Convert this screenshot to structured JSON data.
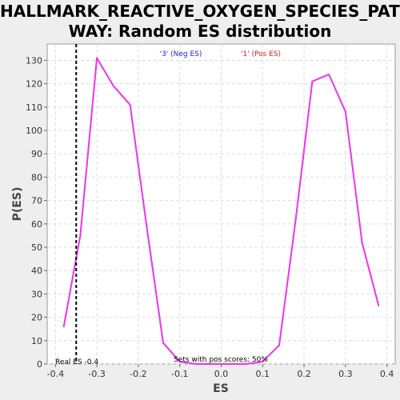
{
  "title_line1": "HALLMARK_REACTIVE_OXYGEN_SPECIES_PATH",
  "title_line2": "WAY: Random ES distribution",
  "legend": {
    "neg": {
      "label": "'3' (Neg ES)",
      "color": "#2222dd"
    },
    "pos": {
      "label": "'1' (Pos ES)",
      "color": "#dd2222"
    }
  },
  "annotations": {
    "real_es": "Real ES -0.4",
    "pos_scores": "Sets with pos scores: 50%"
  },
  "chart_data": {
    "type": "line",
    "title": "HALLMARK_REACTIVE_OXYGEN_SPECIES_PATHWAY: Random ES distribution",
    "xlabel": "ES",
    "ylabel": "P(ES)",
    "xlim": [
      -0.42,
      0.42
    ],
    "ylim": [
      0,
      137
    ],
    "xticks": [
      -0.4,
      -0.3,
      -0.2,
      -0.1,
      0.0,
      0.1,
      0.2,
      0.3,
      0.4
    ],
    "xtick_labels": [
      "-0.4",
      "-0.3",
      "-0.2",
      "-0.1",
      "0.0",
      "0.1",
      "0.2",
      "0.3",
      "0.4"
    ],
    "yticks": [
      0,
      10,
      20,
      30,
      40,
      50,
      60,
      70,
      80,
      90,
      100,
      110,
      120,
      130
    ],
    "grid": true,
    "line_color": "#ee33ee",
    "real_es_value": -0.35,
    "series": [
      {
        "x": [
          -0.38,
          -0.34,
          -0.3,
          -0.26,
          -0.22,
          -0.18,
          -0.14,
          -0.1,
          -0.06,
          0.06,
          0.1,
          0.14,
          0.18,
          0.22,
          0.26,
          0.3,
          0.34,
          0.38
        ],
        "y": [
          16,
          55,
          131,
          119,
          111,
          59,
          9,
          1,
          0,
          0,
          1,
          8,
          62,
          121,
          124,
          108,
          52,
          25
        ]
      }
    ]
  }
}
